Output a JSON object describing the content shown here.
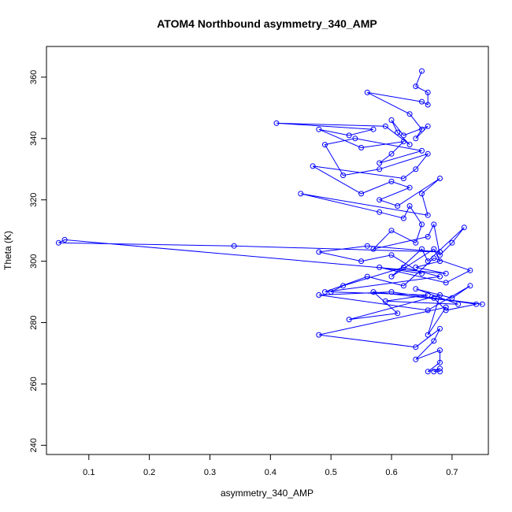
{
  "chart_data": {
    "type": "line",
    "title": "ATOM4 Northbound asymmetry_340_AMP",
    "xlabel": "asymmetry_340_AMP",
    "ylabel": "Theta (K)",
    "xlim": [
      0.03,
      0.76
    ],
    "ylim": [
      237,
      370
    ],
    "x_ticks": [
      0.1,
      0.2,
      0.3,
      0.4,
      0.5,
      0.6,
      0.7
    ],
    "y_ticks": [
      240,
      260,
      280,
      300,
      320,
      340,
      360
    ],
    "marker": "open-circle",
    "line": true,
    "grid": false,
    "series": [
      {
        "color": "#0000ff",
        "x": [
          0.65,
          0.64,
          0.66,
          0.66,
          0.65,
          0.56,
          0.63,
          0.65,
          0.64,
          0.66,
          0.62,
          0.6,
          0.61,
          0.63,
          0.59,
          0.41,
          0.57,
          0.53,
          0.48,
          0.55,
          0.62,
          0.6,
          0.58,
          0.65,
          0.54,
          0.49,
          0.52,
          0.58,
          0.66,
          0.64,
          0.62,
          0.47,
          0.55,
          0.6,
          0.63,
          0.58,
          0.61,
          0.68,
          0.65,
          0.66,
          0.45,
          0.58,
          0.62,
          0.63,
          0.65,
          0.64,
          0.6,
          0.57,
          0.66,
          0.67,
          0.68,
          0.7,
          0.72,
          0.66,
          0.65,
          0.6,
          0.67,
          0.68,
          0.64,
          0.69,
          0.06,
          0.05,
          0.34,
          0.68,
          0.56,
          0.48,
          0.55,
          0.6,
          0.65,
          0.58,
          0.69,
          0.73,
          0.67,
          0.62,
          0.56,
          0.49,
          0.68,
          0.62,
          0.52,
          0.5,
          0.66,
          0.59,
          0.71,
          0.64,
          0.7,
          0.73,
          0.66,
          0.48,
          0.6,
          0.74,
          0.69,
          0.67,
          0.75,
          0.57,
          0.61,
          0.53,
          0.68,
          0.66,
          0.69,
          0.48,
          0.64,
          0.68,
          0.67,
          0.64,
          0.68,
          0.68,
          0.66,
          0.68,
          0.67,
          0.68
        ],
        "y": [
          362,
          357,
          355,
          351,
          352,
          355,
          348,
          343,
          340,
          344,
          341,
          346,
          342,
          338,
          344,
          345,
          343,
          341,
          343,
          337,
          339,
          335,
          332,
          336,
          340,
          338,
          328,
          330,
          335,
          330,
          327,
          331,
          322,
          326,
          324,
          320,
          318,
          327,
          322,
          315,
          322,
          316,
          314,
          318,
          312,
          306,
          310,
          304,
          308,
          312,
          302,
          306,
          311,
          300,
          304,
          295,
          304,
          300,
          298,
          296,
          307,
          306,
          305,
          303,
          305,
          303,
          300,
          302,
          296,
          298,
          293,
          297,
          301,
          292,
          295,
          290,
          295,
          298,
          292,
          290,
          289,
          287,
          286,
          291,
          288,
          292,
          284,
          289,
          290,
          286,
          284,
          288,
          286,
          290,
          283,
          281,
          289,
          276,
          285,
          276,
          272,
          278,
          274,
          268,
          271,
          267,
          264,
          265,
          264,
          264
        ]
      }
    ]
  }
}
